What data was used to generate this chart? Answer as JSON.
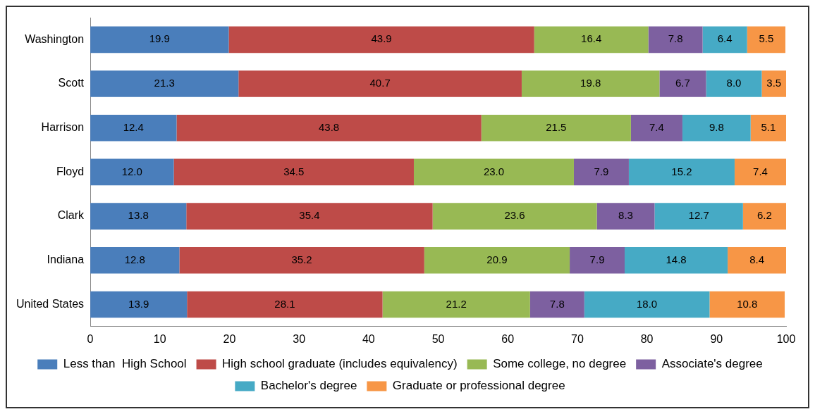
{
  "chart_data": {
    "type": "bar",
    "orientation": "horizontal",
    "stacked": true,
    "grid": false,
    "legend": "bottom",
    "categories": [
      "Washington",
      "Scott",
      "Harrison",
      "Floyd",
      "Clark",
      "Indiana",
      "United States"
    ],
    "xlim": [
      0,
      100
    ],
    "xticks": [
      0,
      10,
      20,
      30,
      40,
      50,
      60,
      70,
      80,
      90,
      100
    ],
    "series": [
      {
        "name": "Less than  High School",
        "color": "#4a7ebb",
        "values": [
          19.9,
          21.3,
          12.4,
          12.0,
          13.8,
          12.8,
          13.9
        ],
        "value_labels": [
          "19.9",
          "21.3",
          "12.4",
          "12.0",
          "13.8",
          "12.8",
          "13.9"
        ]
      },
      {
        "name": "High school graduate (includes equivalency)",
        "color": "#be4b48",
        "values": [
          43.9,
          40.7,
          43.8,
          34.5,
          35.4,
          35.2,
          28.1
        ],
        "value_labels": [
          "43.9",
          "40.7",
          "43.8",
          "34.5",
          "35.4",
          "35.2",
          "28.1"
        ]
      },
      {
        "name": "Some college, no degree",
        "color": "#98b954",
        "values": [
          16.4,
          19.8,
          21.5,
          23.0,
          23.6,
          20.9,
          21.2
        ],
        "value_labels": [
          "16.4",
          "19.8",
          "21.5",
          "23.0",
          "23.6",
          "20.9",
          "21.2"
        ]
      },
      {
        "name": "Associate's degree",
        "color": "#7d60a0",
        "values": [
          7.8,
          6.7,
          7.4,
          7.9,
          8.3,
          7.9,
          7.8
        ],
        "value_labels": [
          "7.8",
          "6.7",
          "7.4",
          "7.9",
          "8.3",
          "7.9",
          "7.8"
        ]
      },
      {
        "name": "Bachelor's degree",
        "color": "#46aac5",
        "values": [
          6.4,
          8.0,
          9.8,
          15.2,
          12.7,
          14.8,
          18.0
        ],
        "value_labels": [
          "6.4",
          "8.0",
          "9.8",
          "15.2",
          "12.7",
          "14.8",
          "18.0"
        ]
      },
      {
        "name": "Graduate or professional degree",
        "color": "#f79646",
        "values": [
          5.5,
          3.5,
          5.1,
          7.4,
          6.2,
          8.4,
          10.8
        ],
        "value_labels": [
          "5.5",
          "3.5",
          "5.1",
          "7.4",
          "6.2",
          "8.4",
          "10.8"
        ]
      }
    ]
  }
}
